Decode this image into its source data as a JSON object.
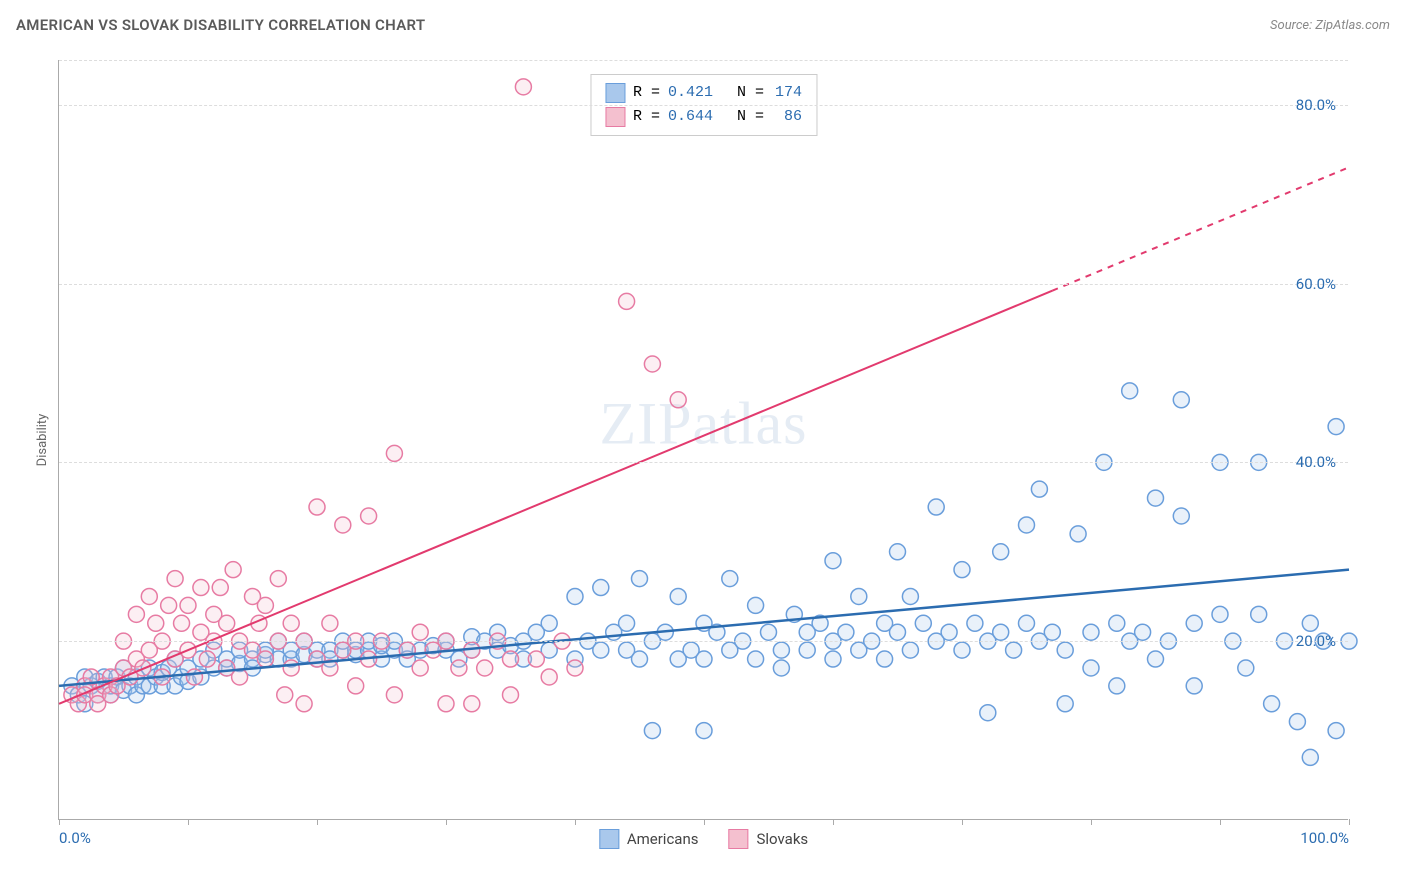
{
  "title": "AMERICAN VS SLOVAK DISABILITY CORRELATION CHART",
  "source_label": "Source: ZipAtlas.com",
  "watermark": "ZIPatlas",
  "y_axis_label": "Disability",
  "chart": {
    "type": "scatter",
    "xlim": [
      0,
      100
    ],
    "ylim": [
      0,
      85
    ],
    "x_ticks": [
      0,
      10,
      20,
      30,
      40,
      50,
      60,
      70,
      80,
      90,
      100
    ],
    "x_tick_labels": {
      "0": "0.0%",
      "100": "100.0%"
    },
    "y_grid": [
      20,
      40,
      60,
      80
    ],
    "y_tick_labels": {
      "20": "20.0%",
      "40": "40.0%",
      "60": "60.0%",
      "80": "80.0%"
    },
    "background_color": "#ffffff",
    "grid_color": "#dddddd",
    "axis_color": "#aaaaaa",
    "tick_label_color": "#2b6cb0",
    "marker_radius": 8,
    "marker_stroke_width": 1.5,
    "marker_fill_opacity": 0.25,
    "series": [
      {
        "name": "Americans",
        "color_fill": "#a9c8ec",
        "color_stroke": "#6a9edb",
        "line_color": "#2b6cb0",
        "line_width": 2.5,
        "trend": {
          "x1": 0,
          "y1": 15,
          "x2": 100,
          "y2": 28,
          "dash_from_x": null
        },
        "R": "0.421",
        "N": "174",
        "points": [
          [
            1,
            15
          ],
          [
            1.5,
            14
          ],
          [
            2,
            13
          ],
          [
            2,
            16
          ],
          [
            2.5,
            15
          ],
          [
            3,
            14
          ],
          [
            3,
            15.5
          ],
          [
            3.5,
            16
          ],
          [
            4,
            14
          ],
          [
            4,
            15
          ],
          [
            4.5,
            16
          ],
          [
            5,
            14.5
          ],
          [
            5,
            17
          ],
          [
            5.5,
            15
          ],
          [
            6,
            14
          ],
          [
            6,
            16
          ],
          [
            6.5,
            15
          ],
          [
            7,
            15
          ],
          [
            7,
            17
          ],
          [
            7.5,
            16
          ],
          [
            8,
            15
          ],
          [
            8,
            16.5
          ],
          [
            8.5,
            17
          ],
          [
            9,
            15
          ],
          [
            9,
            18
          ],
          [
            9.5,
            16
          ],
          [
            10,
            17
          ],
          [
            10,
            15.5
          ],
          [
            11,
            18
          ],
          [
            11,
            16
          ],
          [
            12,
            17
          ],
          [
            12,
            19
          ],
          [
            13,
            17
          ],
          [
            13,
            18
          ],
          [
            14,
            17.5
          ],
          [
            14,
            19
          ],
          [
            15,
            18
          ],
          [
            15,
            17
          ],
          [
            16,
            18.5
          ],
          [
            16,
            19
          ],
          [
            17,
            18
          ],
          [
            17,
            20
          ],
          [
            18,
            18
          ],
          [
            18,
            19
          ],
          [
            19,
            18.5
          ],
          [
            19,
            20
          ],
          [
            20,
            18
          ],
          [
            20,
            19
          ],
          [
            21,
            19
          ],
          [
            21,
            18
          ],
          [
            22,
            19
          ],
          [
            22,
            20
          ],
          [
            23,
            18.5
          ],
          [
            23,
            19
          ],
          [
            24,
            19
          ],
          [
            24,
            20
          ],
          [
            25,
            18
          ],
          [
            25,
            19.5
          ],
          [
            26,
            19
          ],
          [
            26,
            20
          ],
          [
            27,
            19
          ],
          [
            27,
            18
          ],
          [
            28,
            19
          ],
          [
            29,
            19.5
          ],
          [
            30,
            19
          ],
          [
            30,
            20
          ],
          [
            31,
            18
          ],
          [
            32,
            19
          ],
          [
            32,
            20.5
          ],
          [
            33,
            20
          ],
          [
            34,
            19
          ],
          [
            34,
            21
          ],
          [
            35,
            19.5
          ],
          [
            36,
            20
          ],
          [
            36,
            18
          ],
          [
            37,
            21
          ],
          [
            38,
            19
          ],
          [
            38,
            22
          ],
          [
            40,
            18
          ],
          [
            40,
            25
          ],
          [
            41,
            20
          ],
          [
            42,
            19
          ],
          [
            42,
            26
          ],
          [
            43,
            21
          ],
          [
            44,
            19
          ],
          [
            44,
            22
          ],
          [
            45,
            27
          ],
          [
            45,
            18
          ],
          [
            46,
            20
          ],
          [
            46,
            10
          ],
          [
            47,
            21
          ],
          [
            48,
            18
          ],
          [
            48,
            25
          ],
          [
            49,
            19
          ],
          [
            50,
            22
          ],
          [
            50,
            18
          ],
          [
            50,
            10
          ],
          [
            51,
            21
          ],
          [
            52,
            19
          ],
          [
            52,
            27
          ],
          [
            53,
            20
          ],
          [
            54,
            18
          ],
          [
            54,
            24
          ],
          [
            55,
            21
          ],
          [
            56,
            19
          ],
          [
            56,
            17
          ],
          [
            57,
            23
          ],
          [
            58,
            21
          ],
          [
            58,
            19
          ],
          [
            59,
            22
          ],
          [
            60,
            20
          ],
          [
            60,
            18
          ],
          [
            60,
            29
          ],
          [
            61,
            21
          ],
          [
            62,
            19
          ],
          [
            62,
            25
          ],
          [
            63,
            20
          ],
          [
            64,
            22
          ],
          [
            64,
            18
          ],
          [
            65,
            30
          ],
          [
            65,
            21
          ],
          [
            66,
            19
          ],
          [
            66,
            25
          ],
          [
            67,
            22
          ],
          [
            68,
            20
          ],
          [
            68,
            35
          ],
          [
            69,
            21
          ],
          [
            70,
            19
          ],
          [
            70,
            28
          ],
          [
            71,
            22
          ],
          [
            72,
            20
          ],
          [
            72,
            12
          ],
          [
            73,
            30
          ],
          [
            73,
            21
          ],
          [
            74,
            19
          ],
          [
            75,
            33
          ],
          [
            75,
            22
          ],
          [
            76,
            20
          ],
          [
            76,
            37
          ],
          [
            77,
            21
          ],
          [
            78,
            19
          ],
          [
            78,
            13
          ],
          [
            79,
            32
          ],
          [
            80,
            21
          ],
          [
            80,
            17
          ],
          [
            81,
            40
          ],
          [
            82,
            22
          ],
          [
            82,
            15
          ],
          [
            83,
            48
          ],
          [
            83,
            20
          ],
          [
            84,
            21
          ],
          [
            85,
            36
          ],
          [
            85,
            18
          ],
          [
            86,
            20
          ],
          [
            87,
            34
          ],
          [
            87,
            47
          ],
          [
            88,
            22
          ],
          [
            88,
            15
          ],
          [
            90,
            40
          ],
          [
            90,
            23
          ],
          [
            91,
            20
          ],
          [
            92,
            17
          ],
          [
            93,
            40
          ],
          [
            93,
            23
          ],
          [
            94,
            13
          ],
          [
            95,
            20
          ],
          [
            96,
            11
          ],
          [
            97,
            22
          ],
          [
            97,
            7
          ],
          [
            98,
            20
          ],
          [
            99,
            44
          ],
          [
            99,
            10
          ],
          [
            100,
            20
          ]
        ]
      },
      {
        "name": "Slovaks",
        "color_fill": "#f4c0cf",
        "color_stroke": "#e77ba3",
        "line_color": "#e23a6e",
        "line_width": 2,
        "trend": {
          "x1": 0,
          "y1": 13,
          "x2": 100,
          "y2": 73,
          "dash_from_x": 77
        },
        "R": "0.644",
        "N": "86",
        "points": [
          [
            1,
            14
          ],
          [
            1.5,
            13
          ],
          [
            2,
            15
          ],
          [
            2,
            14
          ],
          [
            2.5,
            16
          ],
          [
            3,
            14
          ],
          [
            3,
            13
          ],
          [
            3.5,
            15
          ],
          [
            4,
            16
          ],
          [
            4,
            14
          ],
          [
            4.5,
            15
          ],
          [
            5,
            17
          ],
          [
            5,
            20
          ],
          [
            5.5,
            16
          ],
          [
            6,
            18
          ],
          [
            6,
            23
          ],
          [
            6.5,
            17
          ],
          [
            7,
            19
          ],
          [
            7,
            25
          ],
          [
            7.5,
            22
          ],
          [
            8,
            16
          ],
          [
            8,
            20
          ],
          [
            8.5,
            24
          ],
          [
            9,
            18
          ],
          [
            9,
            27
          ],
          [
            9.5,
            22
          ],
          [
            10,
            19
          ],
          [
            10,
            24
          ],
          [
            10.5,
            16
          ],
          [
            11,
            21
          ],
          [
            11,
            26
          ],
          [
            11.5,
            18
          ],
          [
            12,
            23
          ],
          [
            12,
            20
          ],
          [
            12.5,
            26
          ],
          [
            13,
            17
          ],
          [
            13,
            22
          ],
          [
            13.5,
            28
          ],
          [
            14,
            20
          ],
          [
            14,
            16
          ],
          [
            15,
            25
          ],
          [
            15,
            19
          ],
          [
            15.5,
            22
          ],
          [
            16,
            18
          ],
          [
            16,
            24
          ],
          [
            17,
            20
          ],
          [
            17,
            27
          ],
          [
            17.5,
            14
          ],
          [
            18,
            22
          ],
          [
            18,
            17
          ],
          [
            19,
            20
          ],
          [
            19,
            13
          ],
          [
            20,
            18
          ],
          [
            20,
            35
          ],
          [
            21,
            22
          ],
          [
            21,
            17
          ],
          [
            22,
            19
          ],
          [
            22,
            33
          ],
          [
            23,
            20
          ],
          [
            23,
            15
          ],
          [
            24,
            34
          ],
          [
            24,
            18
          ],
          [
            25,
            20
          ],
          [
            26,
            14
          ],
          [
            26,
            41
          ],
          [
            27,
            19
          ],
          [
            28,
            17
          ],
          [
            28,
            21
          ],
          [
            29,
            19
          ],
          [
            30,
            13
          ],
          [
            30,
            20
          ],
          [
            31,
            17
          ],
          [
            32,
            19
          ],
          [
            32,
            13
          ],
          [
            33,
            17
          ],
          [
            34,
            20
          ],
          [
            35,
            18
          ],
          [
            35,
            14
          ],
          [
            36,
            82
          ],
          [
            37,
            18
          ],
          [
            38,
            16
          ],
          [
            39,
            20
          ],
          [
            40,
            17
          ],
          [
            44,
            58
          ],
          [
            46,
            51
          ],
          [
            48,
            47
          ]
        ]
      }
    ]
  },
  "stats_box": {
    "rows": [
      {
        "swatch_fill": "#a9c8ec",
        "swatch_stroke": "#6a9edb",
        "R": "0.421",
        "N": "174"
      },
      {
        "swatch_fill": "#f4c0cf",
        "swatch_stroke": "#e77ba3",
        "R": "0.644",
        "N": "86"
      }
    ]
  },
  "bottom_legend": [
    {
      "swatch_fill": "#a9c8ec",
      "swatch_stroke": "#6a9edb",
      "label": "Americans"
    },
    {
      "swatch_fill": "#f4c0cf",
      "swatch_stroke": "#e77ba3",
      "label": "Slovaks"
    }
  ]
}
